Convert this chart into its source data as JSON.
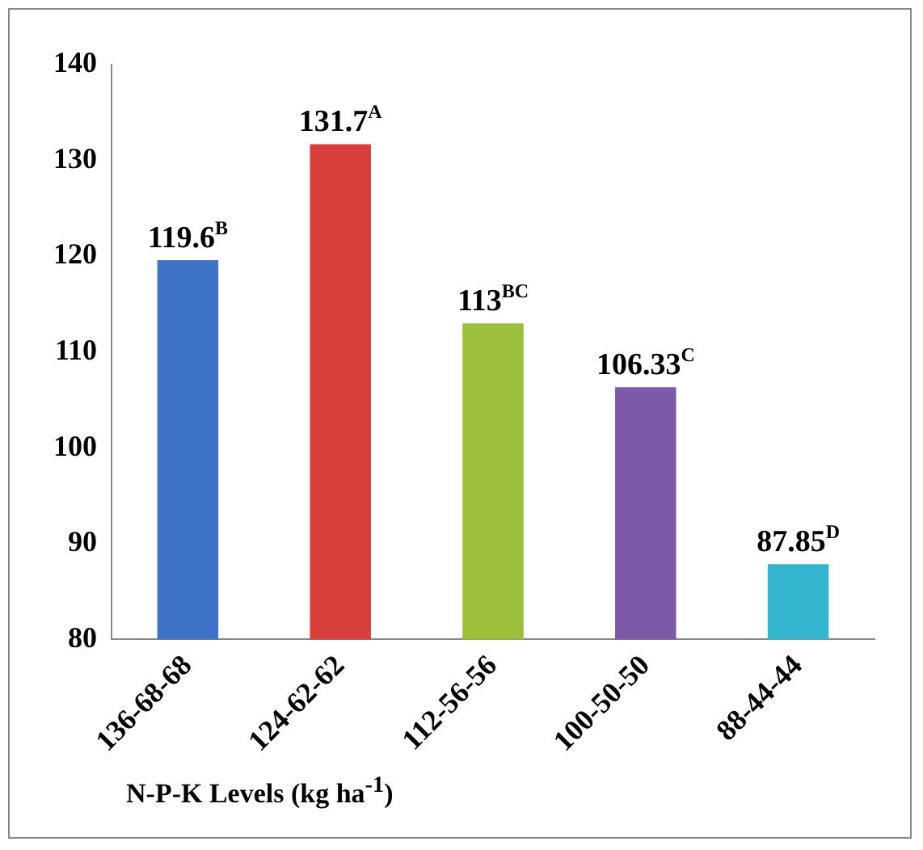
{
  "chart_data": {
    "type": "bar",
    "xlabel": "N-P-K Levels (kg ha$^{-1}$)",
    "categories": [
      "136-68-68",
      "124-62-62",
      "112-56-56",
      "100-50-50",
      "88-44-44"
    ],
    "values": [
      119.6,
      131.7,
      113,
      106.33,
      87.85
    ],
    "colors": [
      "#3f73c8",
      "#d9403c",
      "#9cc03c",
      "#7c5aa8",
      "#33b5cf"
    ],
    "value_labels": [
      "119.6$^{B}$",
      "131.7$^{A}$",
      "113$^{BC}$",
      "106.33$^{C}$",
      "87.85$^{D}$"
    ],
    "ylim": [
      80,
      140
    ],
    "yticks": [
      80,
      90,
      100,
      110,
      120,
      130,
      140
    ],
    "grid": false,
    "legend": false
  }
}
